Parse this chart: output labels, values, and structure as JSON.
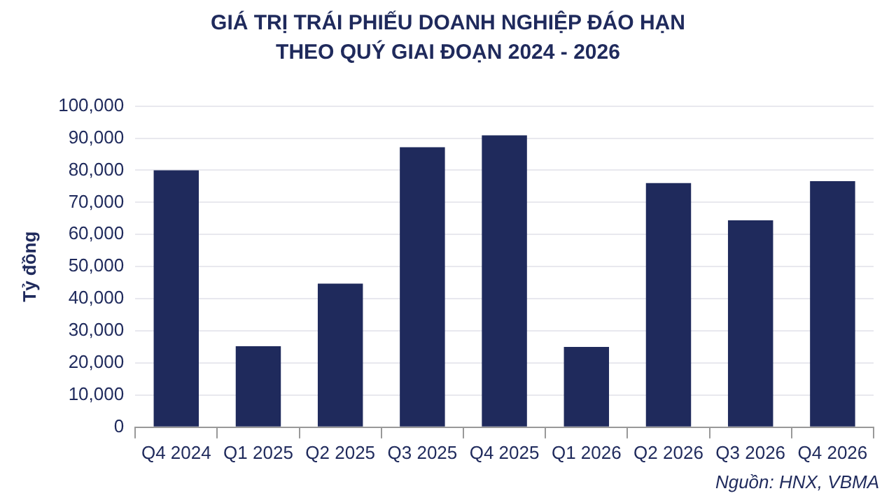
{
  "chart_data": {
    "type": "bar",
    "title": "GIÁ TRỊ TRÁI PHIẾU DOANH NGHIỆP ĐÁO HẠN\nTHEO QUÝ GIAI ĐOẠN 2024 - 2026",
    "ylabel": "Tỷ đồng",
    "categories": [
      "Q4 2024",
      "Q1 2025",
      "Q2 2025",
      "Q3 2025",
      "Q4 2025",
      "Q1 2026",
      "Q2 2026",
      "Q3 2026",
      "Q4 2026"
    ],
    "values": [
      80000,
      25200,
      44700,
      87200,
      90900,
      25000,
      76000,
      64400,
      76600
    ],
    "color": "#1f2a5c",
    "ylim": [
      0,
      100000
    ],
    "yticks": [
      {
        "value": 0,
        "label": "0"
      },
      {
        "value": 10000,
        "label": "10,000"
      },
      {
        "value": 20000,
        "label": "20,000"
      },
      {
        "value": 30000,
        "label": "30,000"
      },
      {
        "value": 40000,
        "label": "40,000"
      },
      {
        "value": 50000,
        "label": "50,000"
      },
      {
        "value": 60000,
        "label": "60,000"
      },
      {
        "value": 70000,
        "label": "70,000"
      },
      {
        "value": 80000,
        "label": "80,000"
      },
      {
        "value": 90000,
        "label": "90,000"
      },
      {
        "value": 100000,
        "label": "100,000"
      }
    ],
    "grid": "y",
    "annotations": [
      "Nguồn: HNX, VBMA"
    ]
  }
}
